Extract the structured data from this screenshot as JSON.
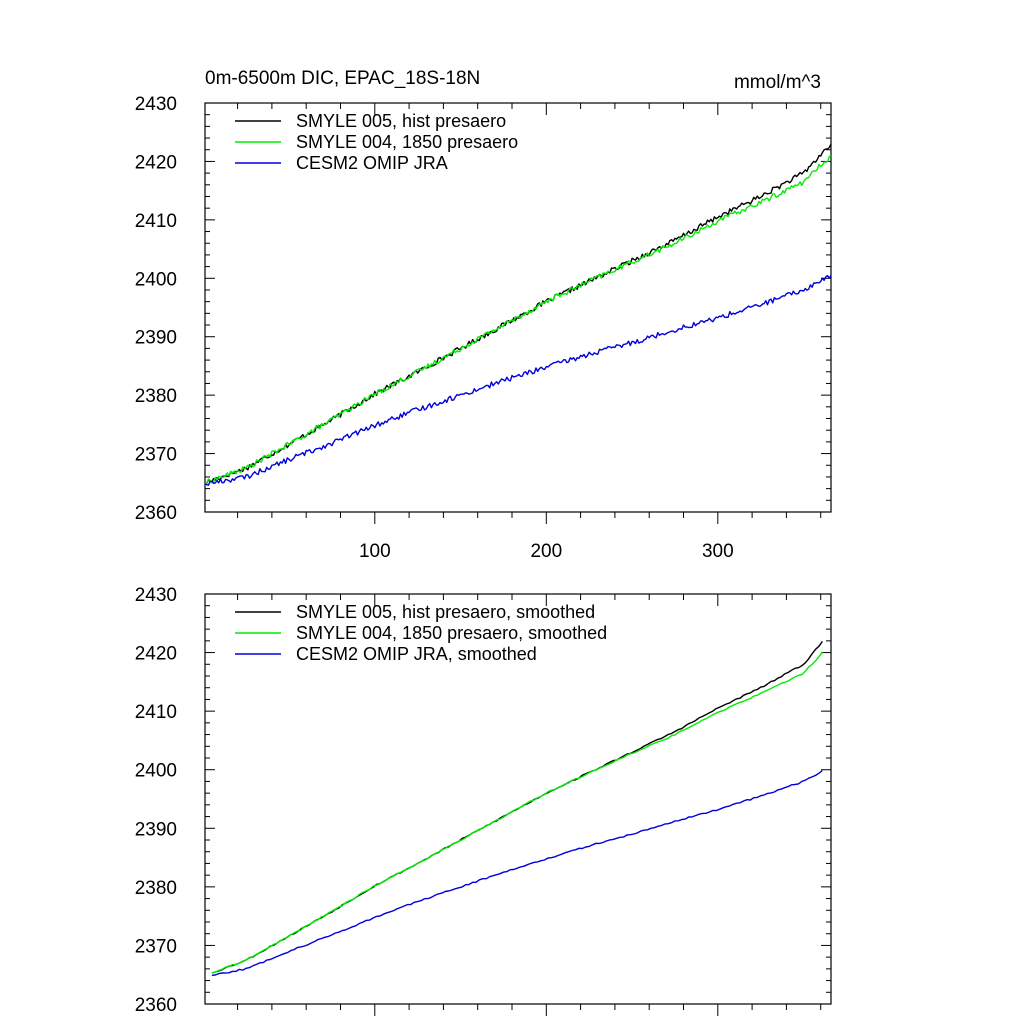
{
  "chart_data": [
    {
      "type": "line",
      "title": "0m-6500m DIC, EPAC_18S-18N",
      "units_label": "mmol/m^3",
      "xlabel": "",
      "ylabel": "",
      "xlim": [
        1,
        366
      ],
      "ylim": [
        2360,
        2430
      ],
      "x_ticks": [
        100,
        200,
        300
      ],
      "x_tick_labels": [
        "100",
        "200",
        "300"
      ],
      "y_ticks": [
        2360,
        2370,
        2380,
        2390,
        2400,
        2410,
        2420,
        2430
      ],
      "y_tick_labels": [
        "2360",
        "2370",
        "2380",
        "2390",
        "2400",
        "2410",
        "2420",
        "2430"
      ],
      "grid": false,
      "legend_position": "top-left",
      "series": [
        {
          "name": "SMYLE 005, hist presaero",
          "color": "#000000",
          "x": [
            1,
            25,
            50,
            75,
            100,
            125,
            150,
            175,
            200,
            225,
            250,
            275,
            300,
            325,
            350,
            366
          ],
          "y": [
            2365.0,
            2367.5,
            2371.6,
            2375.8,
            2380.2,
            2384.0,
            2388.0,
            2392.0,
            2396.0,
            2399.5,
            2403.0,
            2406.5,
            2410.5,
            2414.0,
            2418.0,
            2423.0
          ]
        },
        {
          "name": "SMYLE 004, 1850 presaero",
          "color": "#00ee00",
          "x": [
            1,
            25,
            50,
            75,
            100,
            125,
            150,
            175,
            200,
            225,
            250,
            275,
            300,
            325,
            350,
            366
          ],
          "y": [
            2365.0,
            2367.5,
            2371.6,
            2375.8,
            2380.2,
            2384.0,
            2388.0,
            2392.0,
            2396.0,
            2399.5,
            2402.8,
            2406.0,
            2409.8,
            2413.0,
            2416.5,
            2421.0
          ]
        },
        {
          "name": "CESM2 OMIP JRA",
          "color": "#0000dd",
          "x": [
            1,
            25,
            50,
            75,
            100,
            125,
            150,
            175,
            200,
            225,
            250,
            275,
            300,
            325,
            350,
            366
          ],
          "y": [
            2364.8,
            2366.0,
            2369.0,
            2371.8,
            2374.8,
            2377.5,
            2380.0,
            2382.5,
            2384.8,
            2387.0,
            2389.0,
            2391.2,
            2393.2,
            2395.5,
            2398.0,
            2400.5
          ]
        }
      ]
    },
    {
      "type": "line",
      "title": "",
      "units_label": "",
      "xlabel": "",
      "ylabel": "",
      "xlim": [
        1,
        366
      ],
      "ylim": [
        2360,
        2430
      ],
      "x_ticks": [
        100,
        200,
        300
      ],
      "x_tick_labels": [],
      "y_ticks": [
        2360,
        2370,
        2380,
        2390,
        2400,
        2410,
        2420,
        2430
      ],
      "y_tick_labels": [
        "2360",
        "2370",
        "2380",
        "2390",
        "2400",
        "2410",
        "2420",
        "2430"
      ],
      "grid": false,
      "legend_position": "top-left",
      "series": [
        {
          "name": "SMYLE 005, hist presaero, smoothed",
          "color": "#000000",
          "x": [
            5,
            25,
            50,
            75,
            100,
            125,
            150,
            175,
            200,
            225,
            250,
            275,
            300,
            325,
            350,
            362
          ],
          "y": [
            2365.3,
            2367.5,
            2371.6,
            2375.8,
            2380.2,
            2384.0,
            2388.0,
            2392.0,
            2396.0,
            2399.5,
            2403.0,
            2406.5,
            2410.5,
            2414.0,
            2418.0,
            2422.2
          ]
        },
        {
          "name": "SMYLE 004, 1850 presaero, smoothed",
          "color": "#00ee00",
          "x": [
            5,
            25,
            50,
            75,
            100,
            125,
            150,
            175,
            200,
            225,
            250,
            275,
            300,
            325,
            350,
            362
          ],
          "y": [
            2365.3,
            2367.5,
            2371.6,
            2375.8,
            2380.2,
            2384.0,
            2388.0,
            2392.0,
            2396.0,
            2399.5,
            2402.8,
            2406.0,
            2409.8,
            2413.0,
            2416.5,
            2420.3
          ]
        },
        {
          "name": "CESM2 OMIP JRA, smoothed",
          "color": "#0000dd",
          "x": [
            5,
            25,
            50,
            75,
            100,
            125,
            150,
            175,
            200,
            225,
            250,
            275,
            300,
            325,
            350,
            362
          ],
          "y": [
            2364.9,
            2366.0,
            2369.0,
            2371.8,
            2374.8,
            2377.5,
            2380.0,
            2382.5,
            2384.8,
            2387.0,
            2389.0,
            2391.2,
            2393.2,
            2395.5,
            2398.0,
            2399.9
          ]
        }
      ]
    }
  ]
}
